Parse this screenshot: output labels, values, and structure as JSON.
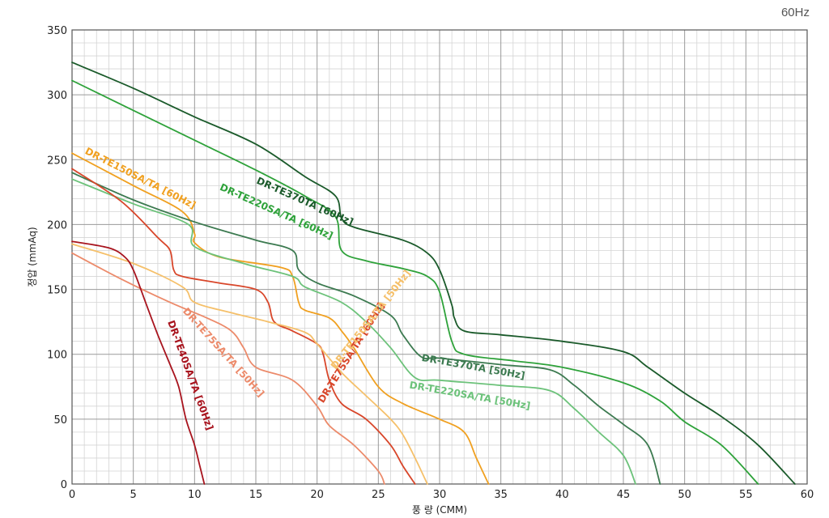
{
  "chart_data": {
    "type": "line",
    "corner_label": "60Hz",
    "xlabel": "풍 량 (CMM)",
    "ylabel": "정압 (mmAq)",
    "xlim": [
      0,
      60
    ],
    "ylim": [
      0,
      350
    ],
    "x_ticks": [
      0,
      5,
      10,
      15,
      20,
      25,
      30,
      35,
      40,
      45,
      50,
      55,
      60
    ],
    "y_ticks": [
      0,
      50,
      100,
      150,
      200,
      250,
      300,
      350
    ],
    "grid": true,
    "series": [
      {
        "name": "DR-TE370TA [60Hz]",
        "color": "#1a5a2a",
        "label_at": [
          15,
          232
        ],
        "label_angle": 24,
        "points": [
          [
            0,
            325
          ],
          [
            5,
            305
          ],
          [
            10,
            283
          ],
          [
            15,
            262
          ],
          [
            19,
            237
          ],
          [
            21.5,
            222
          ],
          [
            22,
            205
          ],
          [
            23,
            198
          ],
          [
            27,
            188
          ],
          [
            29,
            178
          ],
          [
            30,
            165
          ],
          [
            31,
            138
          ],
          [
            31.2,
            128
          ],
          [
            32,
            118
          ],
          [
            35,
            115
          ],
          [
            40,
            110
          ],
          [
            45,
            102
          ],
          [
            47,
            90
          ],
          [
            50,
            70
          ],
          [
            53,
            52
          ],
          [
            56,
            30
          ],
          [
            59,
            0
          ]
        ]
      },
      {
        "name": "DR-TE220SA/TA [60Hz]",
        "color": "#2ea23a",
        "label_at": [
          12,
          227
        ],
        "label_angle": 24,
        "points": [
          [
            0,
            311
          ],
          [
            5,
            288
          ],
          [
            10,
            265
          ],
          [
            15,
            242
          ],
          [
            19,
            222
          ],
          [
            21.5,
            206
          ],
          [
            22,
            180
          ],
          [
            24,
            172
          ],
          [
            27,
            166
          ],
          [
            29,
            160
          ],
          [
            30,
            148
          ],
          [
            31,
            110
          ],
          [
            32,
            100
          ],
          [
            36,
            95
          ],
          [
            40,
            90
          ],
          [
            45,
            78
          ],
          [
            48,
            64
          ],
          [
            50,
            48
          ],
          [
            53,
            30
          ],
          [
            56,
            0
          ]
        ]
      },
      {
        "name": "DR-TE150SA/TA [60Hz]",
        "color": "#f0a020",
        "label_at": [
          1,
          255
        ],
        "label_angle": 27,
        "points": [
          [
            0,
            255
          ],
          [
            5,
            230
          ],
          [
            9,
            210
          ],
          [
            10,
            193
          ],
          [
            10,
            186
          ],
          [
            12,
            175
          ],
          [
            17,
            167
          ],
          [
            18,
            160
          ],
          [
            18.5,
            140
          ],
          [
            19,
            134
          ],
          [
            21,
            128
          ],
          [
            22,
            118
          ],
          [
            23,
            105
          ],
          [
            25,
            75
          ],
          [
            27,
            62
          ],
          [
            30,
            50
          ],
          [
            32,
            40
          ],
          [
            33,
            20
          ],
          [
            34,
            0
          ]
        ]
      },
      {
        "name": "DR-TE370TA [50Hz]",
        "color": "#3c7a50",
        "label_at": [
          28.5,
          95
        ],
        "label_angle": 10,
        "points": [
          [
            0,
            240
          ],
          [
            5,
            219
          ],
          [
            10,
            202
          ],
          [
            15,
            188
          ],
          [
            18,
            180
          ],
          [
            18.5,
            165
          ],
          [
            20,
            155
          ],
          [
            23,
            145
          ],
          [
            26,
            130
          ],
          [
            27,
            115
          ],
          [
            28.5,
            98
          ],
          [
            30,
            97
          ],
          [
            35,
            92
          ],
          [
            39,
            88
          ],
          [
            41,
            76
          ],
          [
            43,
            60
          ],
          [
            45,
            46
          ],
          [
            47,
            30
          ],
          [
            48,
            0
          ]
        ]
      },
      {
        "name": "DR-TE220SA/TA [50Hz]",
        "color": "#6cc27a",
        "label_at": [
          27.5,
          74
        ],
        "label_angle": 10,
        "points": [
          [
            0,
            235
          ],
          [
            5,
            216
          ],
          [
            9.5,
            200
          ],
          [
            10,
            183
          ],
          [
            14,
            170
          ],
          [
            18,
            160
          ],
          [
            19,
            152
          ],
          [
            22,
            140
          ],
          [
            24,
            125
          ],
          [
            26,
            105
          ],
          [
            28,
            82
          ],
          [
            30,
            80
          ],
          [
            35,
            76
          ],
          [
            39,
            72
          ],
          [
            41,
            58
          ],
          [
            43,
            40
          ],
          [
            45,
            22
          ],
          [
            46,
            0
          ]
        ]
      },
      {
        "name": "DR-TE75SA/TA [60Hz]",
        "color": "#d8462a",
        "label_at": [
          20.5,
          62
        ],
        "label_angle": -58,
        "points": [
          [
            0,
            243
          ],
          [
            4,
            218
          ],
          [
            7,
            190
          ],
          [
            8,
            180
          ],
          [
            8.3,
            165
          ],
          [
            9,
            160
          ],
          [
            12,
            155
          ],
          [
            15,
            150
          ],
          [
            16,
            140
          ],
          [
            16.5,
            125
          ],
          [
            18,
            118
          ],
          [
            20,
            108
          ],
          [
            20.5,
            100
          ],
          [
            21,
            80
          ],
          [
            22,
            62
          ],
          [
            24,
            50
          ],
          [
            26,
            30
          ],
          [
            27,
            14
          ],
          [
            28,
            0
          ]
        ]
      },
      {
        "name": "DR-TE150SA/TA [50Hz]",
        "color": "#f5c06a",
        "label_at": [
          21.5,
          88
        ],
        "label_angle": -52,
        "points": [
          [
            0,
            185
          ],
          [
            5,
            170
          ],
          [
            9,
            152
          ],
          [
            10,
            140
          ],
          [
            13,
            132
          ],
          [
            16,
            125
          ],
          [
            19,
            117
          ],
          [
            20,
            108
          ],
          [
            22,
            86
          ],
          [
            24,
            68
          ],
          [
            26,
            50
          ],
          [
            27,
            38
          ],
          [
            28,
            20
          ],
          [
            29,
            0
          ]
        ]
      },
      {
        "name": "DR-TE75SA/TA [50Hz]",
        "color": "#ec8a6a",
        "label_at": [
          9,
          133
        ],
        "label_angle": 48,
        "points": [
          [
            0,
            178
          ],
          [
            4,
            158
          ],
          [
            8,
            140
          ],
          [
            11,
            128
          ],
          [
            13,
            118
          ],
          [
            14,
            105
          ],
          [
            15,
            90
          ],
          [
            18,
            80
          ],
          [
            20,
            60
          ],
          [
            21,
            45
          ],
          [
            23,
            30
          ],
          [
            25,
            10
          ],
          [
            25.5,
            0
          ]
        ]
      },
      {
        "name": "DR-TE40SA/TA [60Hz]",
        "color": "#a8141e",
        "label_at": [
          7.8,
          125
        ],
        "label_angle": 70,
        "points": [
          [
            0,
            187
          ],
          [
            3,
            182
          ],
          [
            4.3,
            175
          ],
          [
            5,
            165
          ],
          [
            6,
            140
          ],
          [
            7,
            115
          ],
          [
            8,
            92
          ],
          [
            8.7,
            75
          ],
          [
            9.3,
            50
          ],
          [
            10,
            30
          ],
          [
            10.4,
            15
          ],
          [
            10.8,
            0
          ]
        ]
      }
    ]
  }
}
